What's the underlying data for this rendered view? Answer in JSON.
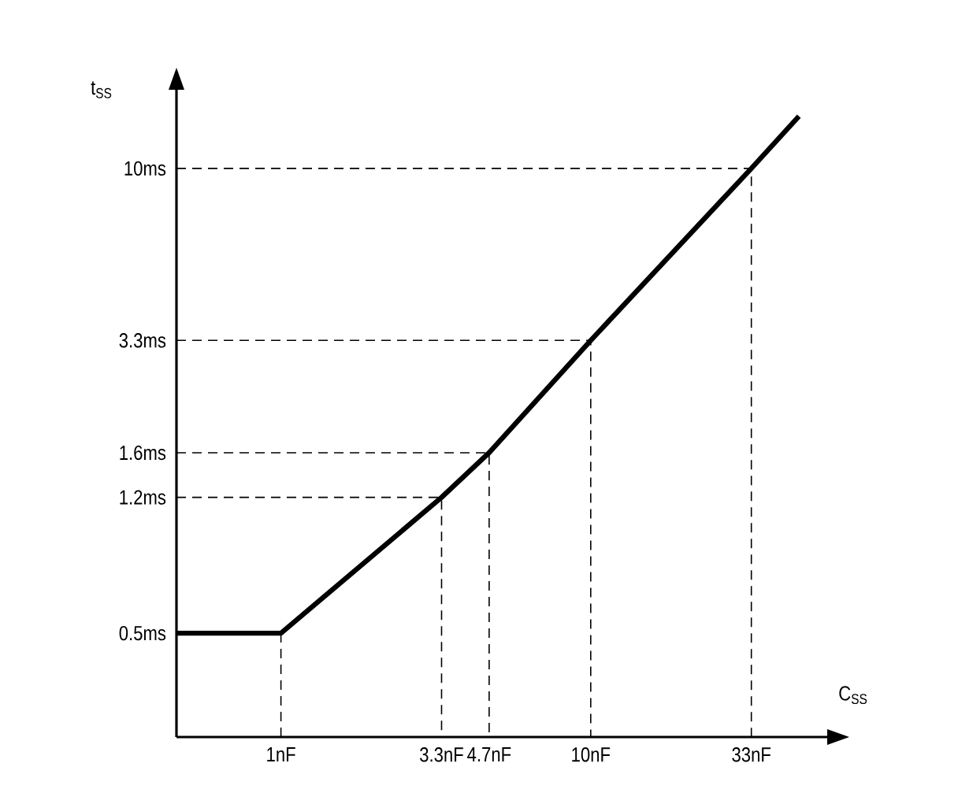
{
  "chart_data": {
    "type": "line",
    "xlabel": "C$_{SS}$",
    "ylabel": "t$_{SS}$",
    "log": "xy",
    "grid": false,
    "marker": "none",
    "xlim": [
      0.46,
      58
    ],
    "ylim": [
      0.256,
      16.6
    ],
    "xticks": [
      {
        "value": 1,
        "label": "1nF"
      },
      {
        "value": 3.3,
        "label": "3.3nF"
      },
      {
        "value": 4.7,
        "label": "4.7nF"
      },
      {
        "value": 10,
        "label": "10nF"
      },
      {
        "value": 33,
        "label": "33nF"
      }
    ],
    "yticks": [
      {
        "value": 0.5,
        "label": "0.5ms"
      },
      {
        "value": 1.2,
        "label": "1.2ms"
      },
      {
        "value": 1.6,
        "label": "1.6ms"
      },
      {
        "value": 3.3,
        "label": "3.3ms"
      },
      {
        "value": 10,
        "label": "10ms"
      }
    ],
    "series": [
      {
        "color": "#000000",
        "line_style": "solid",
        "x": [
          0.46,
          1,
          3.3,
          4.7,
          10,
          33,
          47
        ],
        "values": [
          0.5,
          0.5,
          1.2,
          1.6,
          3.3,
          10,
          14
        ]
      },
      {
        "color": "#000000",
        "line_style": "dashed",
        "x": [
          1,
          1
        ],
        "values": [
          0.5,
          0.256
        ]
      },
      {
        "color": "#000000",
        "line_style": "dashed",
        "x": [
          0.46,
          3.3,
          3.3
        ],
        "values": [
          1.2,
          1.2,
          0.256
        ]
      },
      {
        "color": "#000000",
        "line_style": "dashed",
        "x": [
          0.46,
          4.7,
          4.7
        ],
        "values": [
          1.6,
          1.6,
          0.256
        ]
      },
      {
        "color": "#000000",
        "line_style": "dashed",
        "x": [
          0.46,
          10,
          10
        ],
        "values": [
          3.3,
          3.3,
          0.256
        ]
      },
      {
        "color": "#000000",
        "line_style": "dashed",
        "x": [
          0.46,
          33,
          33
        ],
        "values": [
          10,
          10,
          0.256
        ]
      }
    ]
  }
}
